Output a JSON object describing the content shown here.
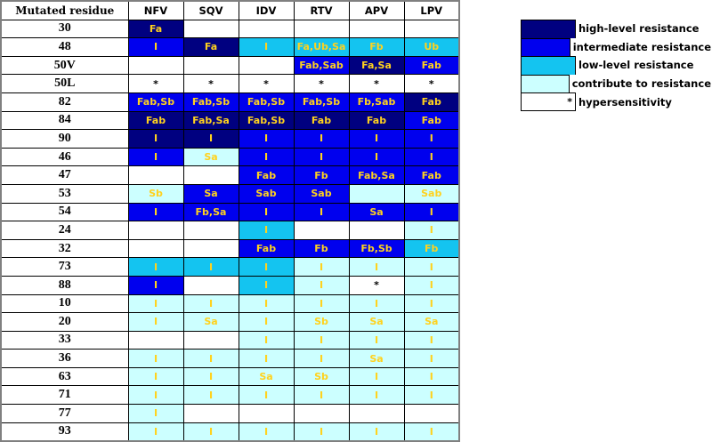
{
  "colors": {
    "H": "#000080",
    "M": "#0000ee",
    "L": "#14c4f0",
    "C": "#ccffff",
    "W": "#ffffff"
  },
  "header": [
    "Mutated residue",
    "NFV",
    "SQV",
    "IDV",
    "RTV",
    "APV",
    "LPV"
  ],
  "rows": [
    {
      "residue": "30",
      "cells": [
        [
          "H",
          "Fa"
        ],
        [
          "W",
          ""
        ],
        [
          "W",
          ""
        ],
        [
          "W",
          ""
        ],
        [
          "W",
          ""
        ],
        [
          "W",
          ""
        ]
      ]
    },
    {
      "residue": "48",
      "cells": [
        [
          "M",
          "I"
        ],
        [
          "H",
          "Fa"
        ],
        [
          "L",
          "I"
        ],
        [
          "L",
          "Fa,Ub,Sa"
        ],
        [
          "L",
          "Fb"
        ],
        [
          "L",
          "Ub"
        ]
      ]
    },
    {
      "residue": "50V",
      "cells": [
        [
          "W",
          ""
        ],
        [
          "W",
          ""
        ],
        [
          "W",
          ""
        ],
        [
          "M",
          "Fab,Sab"
        ],
        [
          "H",
          "Fa,Sa"
        ],
        [
          "M",
          "Fab"
        ]
      ]
    },
    {
      "residue": "50L",
      "cells": [
        [
          "W",
          "*"
        ],
        [
          "W",
          "*"
        ],
        [
          "W",
          "*"
        ],
        [
          "W",
          "*"
        ],
        [
          "W",
          "*"
        ],
        [
          "W",
          "*"
        ]
      ]
    },
    {
      "residue": "82",
      "cells": [
        [
          "M",
          "Fab,Sb"
        ],
        [
          "M",
          "Fab,Sb"
        ],
        [
          "M",
          "Fab,Sb"
        ],
        [
          "M",
          "Fab,Sb"
        ],
        [
          "M",
          "Fb,Sab"
        ],
        [
          "H",
          "Fab"
        ]
      ]
    },
    {
      "residue": "84",
      "cells": [
        [
          "H",
          "Fab"
        ],
        [
          "H",
          "Fab,Sa"
        ],
        [
          "H",
          "Fab,Sb"
        ],
        [
          "H",
          "Fab"
        ],
        [
          "H",
          "Fab"
        ],
        [
          "M",
          "Fab"
        ]
      ]
    },
    {
      "residue": "90",
      "cells": [
        [
          "H",
          "I"
        ],
        [
          "H",
          "I"
        ],
        [
          "M",
          "I"
        ],
        [
          "M",
          "I"
        ],
        [
          "M",
          "I"
        ],
        [
          "M",
          "I"
        ]
      ]
    },
    {
      "residue": "46",
      "cells": [
        [
          "M",
          "I"
        ],
        [
          "C",
          "Sa"
        ],
        [
          "M",
          "I"
        ],
        [
          "M",
          "I"
        ],
        [
          "M",
          "I"
        ],
        [
          "M",
          "I"
        ]
      ]
    },
    {
      "residue": "47",
      "cells": [
        [
          "W",
          ""
        ],
        [
          "W",
          ""
        ],
        [
          "M",
          "Fab"
        ],
        [
          "M",
          "Fb"
        ],
        [
          "M",
          "Fab,Sa"
        ],
        [
          "M",
          "Fab"
        ]
      ]
    },
    {
      "residue": "53",
      "cells": [
        [
          "C",
          "Sb"
        ],
        [
          "M",
          "Sa"
        ],
        [
          "M",
          "Sab"
        ],
        [
          "M",
          "Sab"
        ],
        [
          "C",
          ""
        ],
        [
          "C",
          "Sab"
        ]
      ]
    },
    {
      "residue": "54",
      "cells": [
        [
          "M",
          "I"
        ],
        [
          "M",
          "Fb,Sa"
        ],
        [
          "M",
          "I"
        ],
        [
          "M",
          "I"
        ],
        [
          "M",
          "Sa"
        ],
        [
          "M",
          "I"
        ]
      ]
    },
    {
      "residue": "24",
      "cells": [
        [
          "W",
          ""
        ],
        [
          "W",
          ""
        ],
        [
          "L",
          "I"
        ],
        [
          "W",
          ""
        ],
        [
          "W",
          ""
        ],
        [
          "C",
          "I"
        ]
      ]
    },
    {
      "residue": "32",
      "cells": [
        [
          "W",
          ""
        ],
        [
          "W",
          ""
        ],
        [
          "M",
          "Fab"
        ],
        [
          "M",
          "Fb"
        ],
        [
          "M",
          "Fb,Sb"
        ],
        [
          "L",
          "Fb"
        ]
      ]
    },
    {
      "residue": "73",
      "cells": [
        [
          "L",
          "I"
        ],
        [
          "L",
          "I"
        ],
        [
          "L",
          "I"
        ],
        [
          "C",
          "I"
        ],
        [
          "C",
          "I"
        ],
        [
          "C",
          "I"
        ]
      ]
    },
    {
      "residue": "88",
      "cells": [
        [
          "M",
          "I"
        ],
        [
          "W",
          ""
        ],
        [
          "L",
          "I"
        ],
        [
          "C",
          "I"
        ],
        [
          "W",
          "*"
        ],
        [
          "C",
          "I"
        ]
      ]
    },
    {
      "residue": "10",
      "cells": [
        [
          "C",
          "I"
        ],
        [
          "C",
          "I"
        ],
        [
          "C",
          "I"
        ],
        [
          "C",
          "I"
        ],
        [
          "C",
          "I"
        ],
        [
          "C",
          "I"
        ]
      ]
    },
    {
      "residue": "20",
      "cells": [
        [
          "C",
          "I"
        ],
        [
          "C",
          "Sa"
        ],
        [
          "C",
          "I"
        ],
        [
          "C",
          "Sb"
        ],
        [
          "C",
          "Sa"
        ],
        [
          "C",
          "Sa"
        ]
      ]
    },
    {
      "residue": "33",
      "cells": [
        [
          "W",
          ""
        ],
        [
          "W",
          ""
        ],
        [
          "C",
          "I"
        ],
        [
          "C",
          "I"
        ],
        [
          "C",
          "I"
        ],
        [
          "C",
          "I"
        ]
      ]
    },
    {
      "residue": "36",
      "cells": [
        [
          "C",
          "I"
        ],
        [
          "C",
          "I"
        ],
        [
          "C",
          "I"
        ],
        [
          "C",
          "I"
        ],
        [
          "C",
          "Sa"
        ],
        [
          "C",
          "I"
        ]
      ]
    },
    {
      "residue": "63",
      "cells": [
        [
          "C",
          "I"
        ],
        [
          "C",
          "I"
        ],
        [
          "C",
          "Sa"
        ],
        [
          "C",
          "Sb"
        ],
        [
          "C",
          "I"
        ],
        [
          "C",
          "I"
        ]
      ]
    },
    {
      "residue": "71",
      "cells": [
        [
          "C",
          "I"
        ],
        [
          "C",
          "I"
        ],
        [
          "C",
          "I"
        ],
        [
          "C",
          "I"
        ],
        [
          "C",
          "I"
        ],
        [
          "C",
          "I"
        ]
      ]
    },
    {
      "residue": "77",
      "cells": [
        [
          "C",
          "I"
        ],
        [
          "W",
          ""
        ],
        [
          "W",
          ""
        ],
        [
          "W",
          ""
        ],
        [
          "W",
          ""
        ],
        [
          "W",
          ""
        ]
      ]
    },
    {
      "residue": "93",
      "cells": [
        [
          "C",
          "I"
        ],
        [
          "C",
          "I"
        ],
        [
          "C",
          "I"
        ],
        [
          "C",
          "I"
        ],
        [
          "C",
          "I"
        ],
        [
          "C",
          "I"
        ]
      ]
    }
  ],
  "legend": [
    {
      "level": "H",
      "symbol": "",
      "label": "high-level resistance"
    },
    {
      "level": "M",
      "symbol": "",
      "label": "intermediate resistance"
    },
    {
      "level": "L",
      "symbol": "",
      "label": "low-level resistance"
    },
    {
      "level": "C",
      "symbol": "",
      "label": "contribute to resistance"
    },
    {
      "level": "W",
      "symbol": "*",
      "label": "hypersensitivity"
    }
  ]
}
